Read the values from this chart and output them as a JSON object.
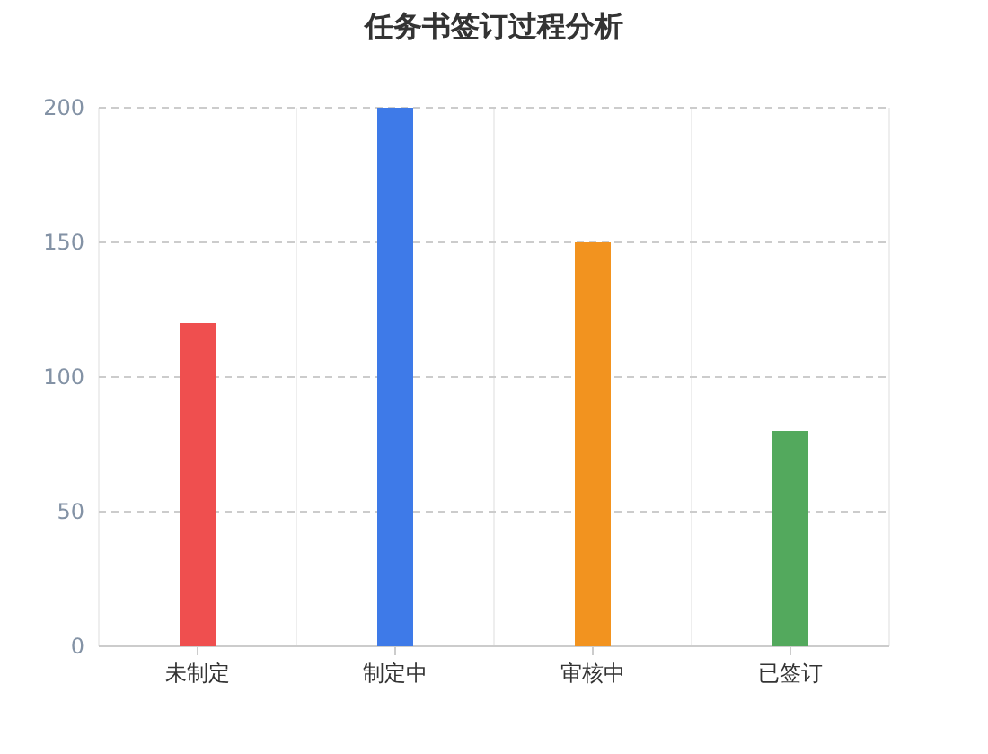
{
  "chart_data": {
    "type": "bar",
    "title": "任务书签订过程分析",
    "categories": [
      "未制定",
      "制定中",
      "审核中",
      "已签订"
    ],
    "values": [
      120,
      200,
      150,
      80
    ],
    "colors": [
      "#ef4f4f",
      "#3e7ae8",
      "#f2931f",
      "#53a95d"
    ],
    "ylim": [
      0,
      200
    ],
    "yticks": [
      0,
      50,
      100,
      150,
      200
    ],
    "grid": true
  }
}
